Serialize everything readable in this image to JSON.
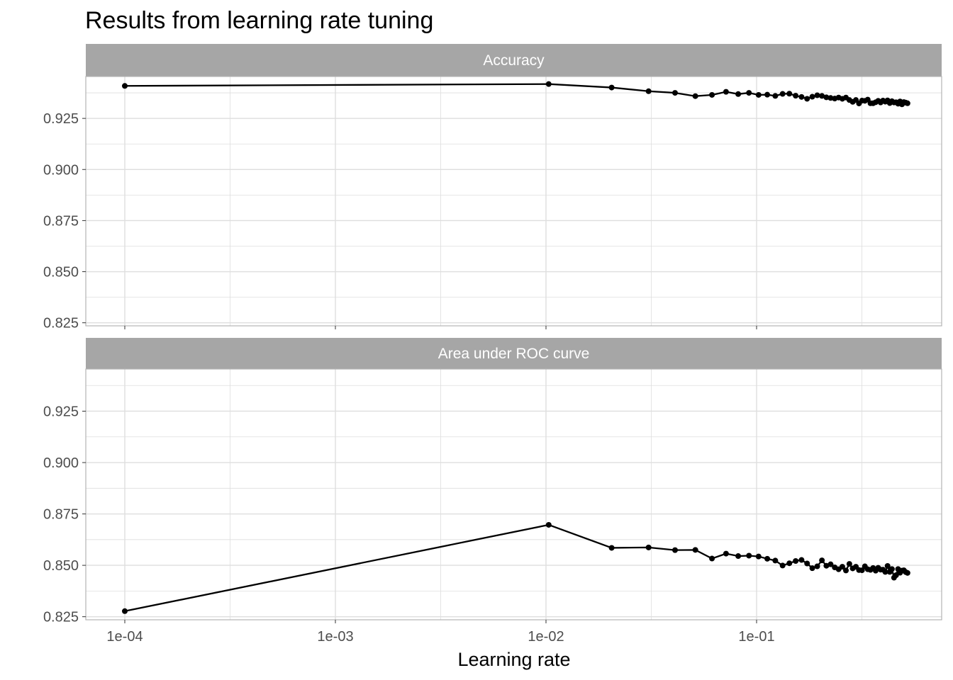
{
  "chart_data": {
    "type": "line",
    "title": "Results from learning rate tuning",
    "xlabel": "Learning rate",
    "ylabel": "",
    "x_scale": "log10",
    "x_ticks": [
      0.0001,
      0.001,
      0.01,
      0.1
    ],
    "x_tick_labels": [
      "1e-04",
      "1e-03",
      "1e-02",
      "1e-01"
    ],
    "y_ticks": [
      0.825,
      0.85,
      0.875,
      0.9,
      0.925
    ],
    "y_tick_labels": [
      "0.825",
      "0.850",
      "0.875",
      "0.900",
      "0.925"
    ],
    "ylim": [
      0.8235,
      0.9455
    ],
    "grid": true,
    "line_color": "#000000",
    "strip_color": "#a6a6a6",
    "grid_color": "#dedede",
    "x": [
      0.0001,
      0.0103,
      0.0205,
      0.0307,
      0.041,
      0.0512,
      0.0614,
      0.0716,
      0.0818,
      0.092,
      0.1022,
      0.1124,
      0.1227,
      0.1329,
      0.1431,
      0.1533,
      0.1635,
      0.1737,
      0.1839,
      0.1941,
      0.2043,
      0.2145,
      0.2247,
      0.235,
      0.2452,
      0.2554,
      0.2656,
      0.2758,
      0.286,
      0.2962,
      0.3064,
      0.3166,
      0.3268,
      0.3371,
      0.3473,
      0.3575,
      0.3677,
      0.3779,
      0.3881,
      0.3983,
      0.4085,
      0.4187,
      0.4289,
      0.4392,
      0.4494,
      0.4596,
      0.4698,
      0.48,
      0.4902,
      0.5004,
      0.5106,
      0.5208
    ],
    "series": [
      {
        "name": "Accuracy",
        "values": [
          0.9409,
          0.9418,
          0.9401,
          0.9383,
          0.9375,
          0.9359,
          0.9365,
          0.938,
          0.9369,
          0.9375,
          0.9365,
          0.9366,
          0.936,
          0.937,
          0.9371,
          0.9361,
          0.9355,
          0.9346,
          0.9356,
          0.9363,
          0.936,
          0.9353,
          0.935,
          0.9347,
          0.9352,
          0.9346,
          0.9352,
          0.934,
          0.9331,
          0.934,
          0.9323,
          0.9337,
          0.9336,
          0.9342,
          0.9324,
          0.9324,
          0.9329,
          0.9336,
          0.9328,
          0.9337,
          0.9332,
          0.9338,
          0.9325,
          0.9334,
          0.9328,
          0.9329,
          0.9322,
          0.9333,
          0.9319,
          0.933,
          0.9327,
          0.9324
        ]
      },
      {
        "name": "Area under ROC curve",
        "values": [
          0.8277,
          0.8697,
          0.8585,
          0.8587,
          0.8574,
          0.8575,
          0.8533,
          0.8557,
          0.8545,
          0.8547,
          0.8543,
          0.8532,
          0.8523,
          0.8499,
          0.851,
          0.8521,
          0.8526,
          0.8509,
          0.8486,
          0.8495,
          0.8524,
          0.8498,
          0.8505,
          0.849,
          0.8481,
          0.8493,
          0.8475,
          0.8507,
          0.8485,
          0.8493,
          0.8477,
          0.8476,
          0.8495,
          0.8481,
          0.8478,
          0.8487,
          0.8474,
          0.8488,
          0.8479,
          0.8479,
          0.8468,
          0.8497,
          0.8468,
          0.8482,
          0.844,
          0.8452,
          0.8482,
          0.8464,
          0.8474,
          0.8476,
          0.8467,
          0.8463
        ]
      }
    ]
  }
}
